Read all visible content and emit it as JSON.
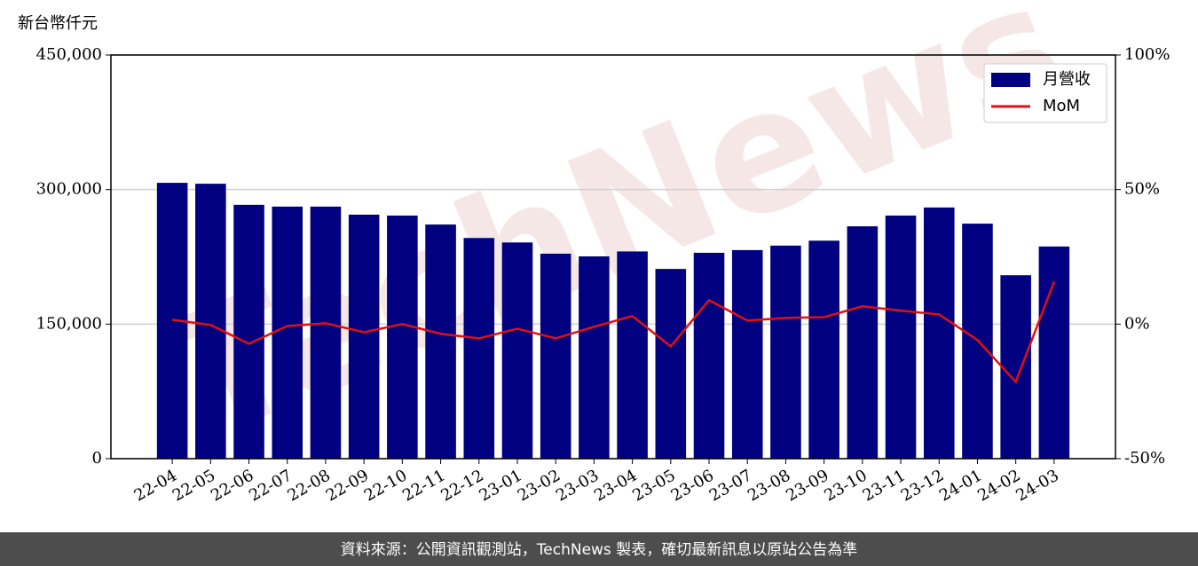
{
  "chart_data": {
    "type": "bar",
    "y_label": "新台幣仟元",
    "categories": [
      "22-04",
      "22-05",
      "22-06",
      "22-07",
      "22-08",
      "22-09",
      "22-10",
      "22-11",
      "22-12",
      "23-01",
      "23-02",
      "23-03",
      "23-04",
      "23-05",
      "23-06",
      "23-07",
      "23-08",
      "23-09",
      "23-10",
      "23-11",
      "23-12",
      "24-01",
      "24-02",
      "24-03"
    ],
    "series": [
      {
        "name": "月營收",
        "type": "bar",
        "color": "#000080",
        "values": [
          307500,
          306500,
          283000,
          281000,
          281000,
          272000,
          271000,
          261000,
          246000,
          241000,
          228500,
          225500,
          231000,
          211500,
          229500,
          232500,
          237500,
          243000,
          259000,
          271000,
          280000,
          262000,
          204500,
          236500
        ]
      },
      {
        "name": "MoM",
        "type": "line",
        "color": "#e01010",
        "axis": "y2",
        "values": [
          1.6,
          -0.3,
          -7.3,
          -0.7,
          0.3,
          -3.0,
          0,
          -3.6,
          -5.3,
          -1.7,
          -5.3,
          -1.0,
          3.0,
          -8.3,
          8.9,
          1.3,
          2.3,
          2.6,
          6.6,
          5.0,
          3.6,
          -5.9,
          -21.5,
          15.8
        ]
      }
    ],
    "ylim": [
      0,
      450000
    ],
    "yticks": [
      0,
      {
        "value": 150000,
        "label": "150,000"
      },
      {
        "value": 300000,
        "label": "300,000"
      },
      {
        "value": 450000,
        "label": "450,000"
      }
    ],
    "y2lim": [
      -50,
      100
    ],
    "y2ticks": [
      {
        "value": -50,
        "label": "-50%"
      },
      {
        "value": 0,
        "label": "0%"
      },
      {
        "value": 50,
        "label": "50%"
      },
      {
        "value": 100,
        "label": "100%"
      }
    ],
    "grid": true,
    "legend": "upper right"
  },
  "watermark": "TechNews",
  "footer": "資料來源：公開資訊觀測站，TechNews 製表，確切最新訊息以原站公告為準"
}
